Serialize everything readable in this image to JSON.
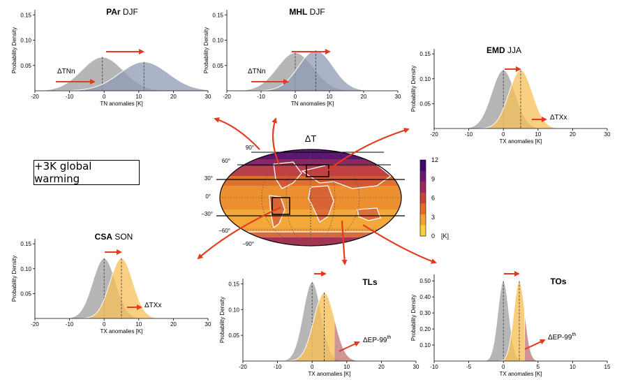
{
  "title_dT": "ΔT",
  "warming_label": "+3K global warming",
  "colorbar": {
    "ticks": [
      "12",
      "9",
      "6",
      "3",
      "0"
    ],
    "unit": "[K]",
    "colors": [
      "#3b0a6b",
      "#6b1a6e",
      "#9b2a5a",
      "#c8403a",
      "#e8692a",
      "#f3a030",
      "#f8d03a"
    ]
  },
  "map": {
    "lat_labels": [
      "90°",
      "60°",
      "30°",
      "0°",
      "−30°",
      "−60°",
      "−90°"
    ]
  },
  "colors": {
    "gray": "#a9a9a9",
    "blue": "#8f9ab3",
    "orange": "#f7c058",
    "red": "#c47c7c",
    "arrow": "#e63a1e"
  },
  "panels": [
    {
      "id": "par",
      "title_bold": "PAr",
      "title_rest": " DJF",
      "ylabel": "Probability Density",
      "xlabel": "TN anomalies [K]",
      "xticks": [
        "-20",
        "-10",
        "0",
        "10",
        "20",
        "30"
      ],
      "yticks": [
        "0.15",
        "0.10",
        "0.05"
      ],
      "annotation": "ΔTNn",
      "chart_data": {
        "type": "area",
        "xlim": [
          -20,
          30
        ],
        "ylim": [
          0,
          0.16
        ],
        "series": [
          {
            "mean": -0.5,
            "sd": 6.0,
            "color": "gray"
          },
          {
            "mean": 11.5,
            "sd": 7.0,
            "color": "blue"
          }
        ]
      }
    },
    {
      "id": "mhl",
      "title_bold": "MHL",
      "title_rest": " DJF",
      "ylabel": "Probability Density",
      "xlabel": "TN anomalies [K]",
      "xticks": [
        "-20",
        "-10",
        "0",
        "10",
        "20",
        "30"
      ],
      "yticks": [
        "0.15",
        "0.10",
        "0.05"
      ],
      "annotation": "ΔTNn",
      "chart_data": {
        "type": "area",
        "xlim": [
          -20,
          30
        ],
        "ylim": [
          0,
          0.16
        ],
        "series": [
          {
            "mean": 0,
            "sd": 5.3,
            "color": "gray"
          },
          {
            "mean": 6,
            "sd": 5.0,
            "color": "blue"
          }
        ]
      }
    },
    {
      "id": "emd",
      "title_bold": "EMD",
      "title_rest": " JJA",
      "ylabel": "Probability Density",
      "xlabel": "TX anomalies [K]",
      "xticks": [
        "-20",
        "-10",
        "0",
        "10",
        "20",
        "30"
      ],
      "yticks": [
        "0.15",
        "0.10",
        "0.05"
      ],
      "annotation": "ΔTXx",
      "chart_data": {
        "type": "area",
        "xlim": [
          -20,
          30
        ],
        "ylim": [
          0,
          0.16
        ],
        "series": [
          {
            "mean": 0,
            "sd": 3.4,
            "color": "gray"
          },
          {
            "mean": 5,
            "sd": 3.4,
            "color": "orange"
          }
        ]
      }
    },
    {
      "id": "csa",
      "title_bold": "CSA",
      "title_rest": " SON",
      "ylabel": "Probability Density",
      "xlabel": "TX anomalies [K]",
      "xticks": [
        "-20",
        "-10",
        "0",
        "10",
        "20",
        "30"
      ],
      "yticks": [
        "0.15",
        "0.10",
        "0.05"
      ],
      "annotation": "ΔTXx",
      "chart_data": {
        "type": "area",
        "xlim": [
          -20,
          30
        ],
        "ylim": [
          0,
          0.16
        ],
        "series": [
          {
            "mean": 0,
            "sd": 3.3,
            "color": "gray"
          },
          {
            "mean": 5,
            "sd": 3.3,
            "color": "orange"
          }
        ]
      }
    },
    {
      "id": "tls",
      "title_bold": "TLs",
      "title_rest": "",
      "ylabel": "Probability Density",
      "xlabel": "TX anomalies [K]",
      "xticks": [
        "-20",
        "-10",
        "0",
        "10",
        "20",
        "30"
      ],
      "yticks": [
        "0.15",
        "0.10",
        "0.05"
      ],
      "annotation": "ΔEP-99",
      "annotation_sup": "th",
      "chart_data": {
        "type": "area",
        "xlim": [
          -20,
          30
        ],
        "ylim": [
          0,
          0.16
        ],
        "series": [
          {
            "mean": 0,
            "sd": 2.6,
            "color": "gray"
          },
          {
            "mean": 3.5,
            "sd": 3.0,
            "color": "orange",
            "upper_color": "red"
          }
        ]
      }
    },
    {
      "id": "tos",
      "title_bold": "TOs",
      "title_rest": "",
      "ylabel": "Probability Density",
      "xlabel": "TX anomalies [K]",
      "xticks": [
        "-10",
        "-5",
        "0",
        "5",
        "10",
        "15"
      ],
      "yticks": [
        "0.50",
        "0.40",
        "0.30",
        "0.20",
        "0.10"
      ],
      "annotation": "ΔEP-99",
      "annotation_sup": "th",
      "chart_data": {
        "type": "area",
        "xlim": [
          -10,
          15
        ],
        "ylim": [
          0,
          0.54
        ],
        "series": [
          {
            "mean": 0,
            "sd": 0.8,
            "color": "gray"
          },
          {
            "mean": 2.3,
            "sd": 0.8,
            "color": "orange",
            "upper_color": "red"
          }
        ]
      }
    }
  ]
}
